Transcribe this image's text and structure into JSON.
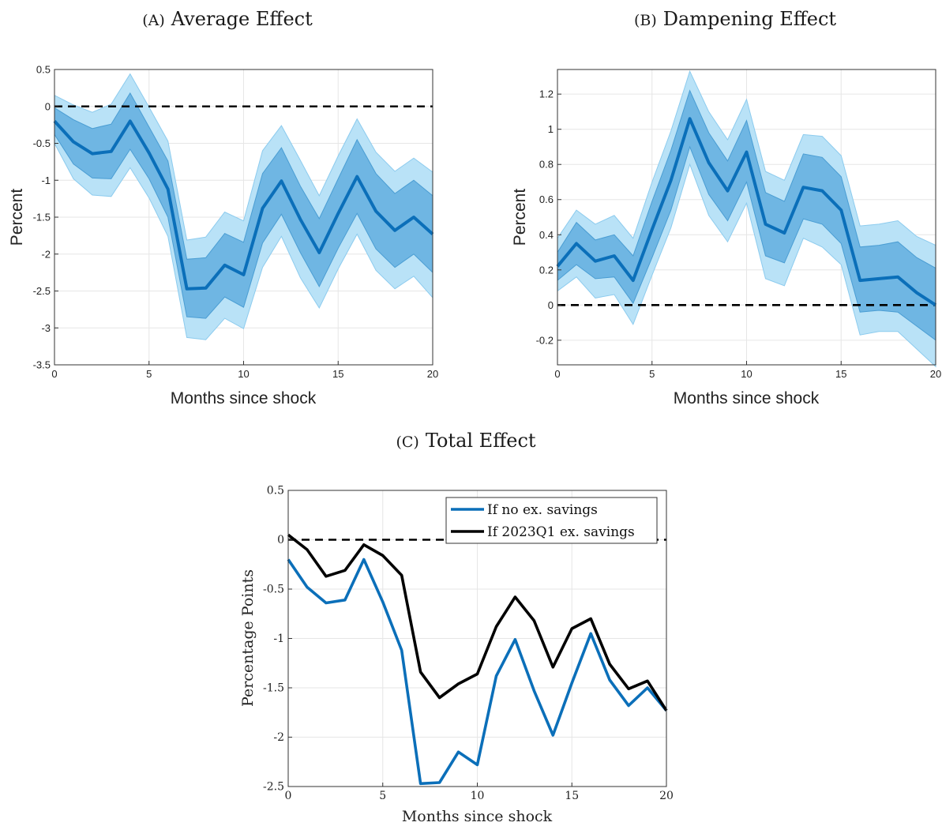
{
  "chart_data": [
    {
      "id": "a",
      "type": "line",
      "caption_prefix": "(A)",
      "caption": "Average Effect",
      "xlabel": "Months since shock",
      "ylabel": "Percent",
      "xlim": [
        0,
        20
      ],
      "ylim": [
        -3.5,
        0.5
      ],
      "xticks": [
        0,
        5,
        10,
        15,
        20
      ],
      "yticks": [
        0.5,
        0,
        -0.5,
        -1,
        -1.5,
        -2,
        -2.5,
        -3,
        -3.5
      ],
      "grid": true,
      "zero_line": true,
      "x": [
        0,
        1,
        2,
        3,
        4,
        5,
        6,
        7,
        8,
        9,
        10,
        11,
        12,
        13,
        14,
        15,
        16,
        17,
        18,
        19,
        20
      ],
      "series": [
        {
          "role": "point_estimate",
          "color": "#0b6fb9",
          "values": [
            -0.2,
            -0.48,
            -0.64,
            -0.61,
            -0.2,
            -0.63,
            -1.12,
            -2.47,
            -2.46,
            -2.15,
            -2.28,
            -1.38,
            -1.01,
            -1.53,
            -1.98,
            -1.45,
            -0.95,
            -1.42,
            -1.68,
            -1.5,
            -1.73
          ]
        },
        {
          "role": "band_inner",
          "color": "#6fb6e3",
          "lower": [
            -0.38,
            -0.78,
            -0.97,
            -0.98,
            -0.58,
            -0.98,
            -1.5,
            -2.85,
            -2.87,
            -2.58,
            -2.72,
            -1.85,
            -1.46,
            -1.98,
            -2.44,
            -1.92,
            -1.45,
            -1.93,
            -2.18,
            -2.0,
            -2.25
          ],
          "upper": [
            -0.02,
            -0.18,
            -0.3,
            -0.24,
            0.18,
            -0.28,
            -0.74,
            -2.07,
            -2.05,
            -1.72,
            -1.84,
            -0.91,
            -0.56,
            -1.08,
            -1.52,
            -0.98,
            -0.45,
            -0.91,
            -1.18,
            -1.0,
            -1.21
          ]
        },
        {
          "role": "band_outer",
          "color": "#b9e2f7",
          "lower": [
            -0.5,
            -0.98,
            -1.2,
            -1.22,
            -0.83,
            -1.24,
            -1.76,
            -3.13,
            -3.16,
            -2.87,
            -3.01,
            -2.18,
            -1.76,
            -2.32,
            -2.73,
            -2.2,
            -1.73,
            -2.22,
            -2.47,
            -2.3,
            -2.59
          ],
          "upper": [
            0.15,
            0.02,
            -0.08,
            0.03,
            0.44,
            -0.01,
            -0.47,
            -1.81,
            -1.77,
            -1.43,
            -1.55,
            -0.6,
            -0.26,
            -0.73,
            -1.21,
            -0.67,
            -0.17,
            -0.62,
            -0.88,
            -0.7,
            -0.89
          ]
        }
      ]
    },
    {
      "id": "b",
      "type": "line",
      "caption_prefix": "(B)",
      "caption": "Dampening Effect",
      "xlabel": "Months since shock",
      "ylabel": "Percent",
      "xlim": [
        0,
        20
      ],
      "ylim": [
        -0.34,
        1.34
      ],
      "xticks": [
        0,
        5,
        10,
        15,
        20
      ],
      "yticks": [
        1.2,
        1,
        0.8,
        0.6,
        0.4,
        0.2,
        0,
        -0.2
      ],
      "grid": true,
      "zero_line": true,
      "x": [
        0,
        1,
        2,
        3,
        4,
        5,
        6,
        7,
        8,
        9,
        10,
        11,
        12,
        13,
        14,
        15,
        16,
        17,
        18,
        19,
        20
      ],
      "series": [
        {
          "role": "point_estimate",
          "color": "#0b6fb9",
          "values": [
            0.22,
            0.35,
            0.25,
            0.28,
            0.14,
            0.43,
            0.71,
            1.06,
            0.81,
            0.65,
            0.87,
            0.46,
            0.41,
            0.67,
            0.65,
            0.54,
            0.14,
            0.15,
            0.16,
            0.07,
            0.0
          ]
        },
        {
          "role": "band_inner",
          "color": "#6fb6e3",
          "lower": [
            0.14,
            0.23,
            0.15,
            0.16,
            0.01,
            0.27,
            0.54,
            0.9,
            0.63,
            0.48,
            0.7,
            0.28,
            0.24,
            0.49,
            0.46,
            0.35,
            -0.04,
            -0.03,
            -0.04,
            -0.12,
            -0.2
          ],
          "upper": [
            0.3,
            0.47,
            0.37,
            0.4,
            0.28,
            0.59,
            0.88,
            1.22,
            0.98,
            0.82,
            1.05,
            0.64,
            0.59,
            0.86,
            0.84,
            0.73,
            0.33,
            0.34,
            0.36,
            0.27,
            0.21
          ]
        },
        {
          "role": "band_outer",
          "color": "#b9e2f7",
          "lower": [
            0.08,
            0.16,
            0.04,
            0.06,
            -0.11,
            0.17,
            0.44,
            0.8,
            0.51,
            0.36,
            0.58,
            0.15,
            0.11,
            0.38,
            0.33,
            0.23,
            -0.17,
            -0.15,
            -0.15,
            -0.25,
            -0.35
          ],
          "upper": [
            0.38,
            0.54,
            0.46,
            0.51,
            0.38,
            0.7,
            0.99,
            1.33,
            1.1,
            0.94,
            1.17,
            0.76,
            0.71,
            0.97,
            0.96,
            0.85,
            0.45,
            0.46,
            0.48,
            0.39,
            0.34
          ]
        }
      ]
    },
    {
      "id": "c",
      "type": "line",
      "caption_prefix": "(C)",
      "caption": "Total Effect",
      "xlabel": "Months since shock",
      "ylabel": "Percentage Points",
      "xlim": [
        0,
        20
      ],
      "ylim": [
        -2.5,
        0.5
      ],
      "xticks": [
        0,
        5,
        10,
        15,
        20
      ],
      "yticks": [
        0.5,
        0,
        -0.5,
        -1,
        -1.5,
        -2,
        -2.5
      ],
      "grid": true,
      "zero_line": true,
      "legend": "top-right",
      "x": [
        0,
        1,
        2,
        3,
        4,
        5,
        6,
        7,
        8,
        9,
        10,
        11,
        12,
        13,
        14,
        15,
        16,
        17,
        18,
        19,
        20
      ],
      "series": [
        {
          "name": "If no ex. savings",
          "color": "#0b6fb9",
          "values": [
            -0.2,
            -0.48,
            -0.64,
            -0.61,
            -0.2,
            -0.63,
            -1.12,
            -2.47,
            -2.46,
            -2.15,
            -2.28,
            -1.38,
            -1.01,
            -1.53,
            -1.98,
            -1.45,
            -0.95,
            -1.42,
            -1.68,
            -1.5,
            -1.73
          ]
        },
        {
          "name": "If 2023Q1 ex. savings",
          "color": "#000000",
          "values": [
            0.05,
            -0.1,
            -0.37,
            -0.31,
            -0.05,
            -0.16,
            -0.36,
            -1.34,
            -1.6,
            -1.46,
            -1.36,
            -0.88,
            -0.58,
            -0.82,
            -1.29,
            -0.9,
            -0.8,
            -1.26,
            -1.51,
            -1.43,
            -1.73
          ]
        }
      ]
    }
  ]
}
